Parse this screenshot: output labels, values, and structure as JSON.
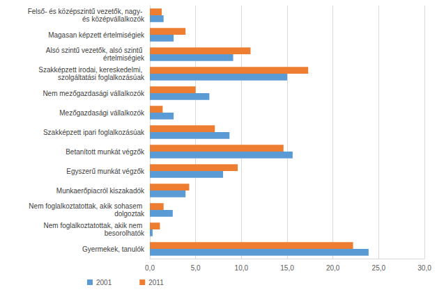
{
  "chart_data": {
    "type": "bar",
    "orientation": "horizontal",
    "categories": [
      "Felső- és középszintű vezetők, nagy- és középvállalkozók",
      "Magasan képzett értelmiségiek",
      "Alsó szintű vezetők, alsó szintű értelmiségiek",
      "Szakképzett irodai, kereskedelmi, szolgáltatási foglalkozásúak",
      "Nem mezőgazdasági vállalkozók",
      "Mezőgazdasági vállalkozók",
      "Szakképzett ipari foglalkozásúak",
      "Betanított munkát végzők",
      "Egyszerű munkát végzők",
      "Munkaerőpiacról kiszakadók",
      "Nem foglalkoztatottak, akik sohasem dolgoztak",
      "Nem foglalkoztatottak, akik nem besorolhatók",
      "Gyermekek, tanulók"
    ],
    "series": [
      {
        "name": "2001",
        "color": "#5b9bd5",
        "values": [
          1.5,
          2.6,
          9.1,
          15.0,
          6.5,
          2.6,
          8.7,
          15.6,
          8.0,
          3.9,
          2.5,
          0.3,
          23.9
        ]
      },
      {
        "name": "2011",
        "color": "#ed7d31",
        "values": [
          1.3,
          3.9,
          11.0,
          17.3,
          5.0,
          1.4,
          7.1,
          14.6,
          9.6,
          4.3,
          1.5,
          1.1,
          22.2
        ]
      }
    ],
    "xlim": [
      0,
      30
    ],
    "xticks": [
      {
        "value": 0,
        "label": "0,0"
      },
      {
        "value": 5,
        "label": "5,0"
      },
      {
        "value": 10,
        "label": "10,0"
      },
      {
        "value": 15,
        "label": "15,0"
      },
      {
        "value": 20,
        "label": "20,0"
      },
      {
        "value": 25,
        "label": "25,0"
      },
      {
        "value": 30,
        "label": "30,0"
      }
    ],
    "grid": true,
    "legend": "bottom"
  }
}
